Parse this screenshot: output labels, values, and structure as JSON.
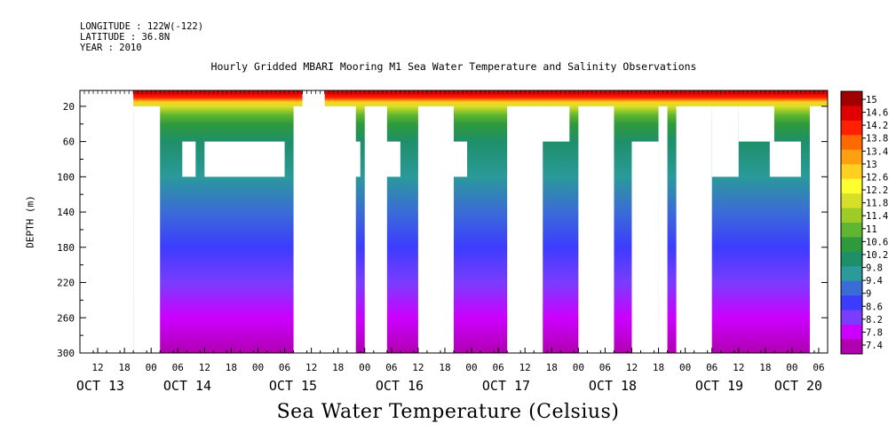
{
  "header": {
    "longitude": "LONGITUDE : 122W(-122)",
    "latitude": "LATITUDE : 36.8N",
    "year": "YEAR : 2010"
  },
  "chart_data": {
    "type": "heatmap",
    "title": "Hourly Gridded MBARI Mooring M1 Sea Water Temperature and Salinity Observations",
    "xlabel": "",
    "ylabel": "DEPTH (m)",
    "colorbar_label": "Sea Water Temperature (Celsius)",
    "x_range_hours_from_oct13_00": [
      8,
      176
    ],
    "x_hour_ticks": [
      "12",
      "18",
      "00",
      "06",
      "12",
      "18",
      "00",
      "06",
      "12",
      "18",
      "00",
      "06",
      "12",
      "18",
      "00",
      "06",
      "12",
      "18",
      "00",
      "06",
      "12",
      "18",
      "00",
      "06",
      "12",
      "18",
      "00",
      "06"
    ],
    "x_day_labels": [
      "OCT 13",
      "OCT 14",
      "OCT 15",
      "OCT 16",
      "OCT 17",
      "OCT 18",
      "OCT 19",
      "OCT 20"
    ],
    "y_range": [
      300,
      2
    ],
    "y_ticks": [
      20,
      60,
      100,
      140,
      180,
      220,
      260,
      300
    ],
    "colorbar_ticks": [
      "15",
      "14.6",
      "14.2",
      "13.8",
      "13.4",
      "13",
      "12.6",
      "12.2",
      "11.8",
      "11.4",
      "11",
      "10.6",
      "10.2",
      "9.8",
      "9.4",
      "9",
      "8.6",
      "8.2",
      "7.8",
      "7.4"
    ],
    "colorbar_range": [
      7.4,
      15.2
    ],
    "colors": [
      "#b000b0",
      "#cc00ff",
      "#7a3cff",
      "#3c3cff",
      "#3a6cd6",
      "#2a9a9a",
      "#1f8f6a",
      "#2e9a3c",
      "#5fb630",
      "#9dcc26",
      "#d6e028",
      "#ffff30",
      "#ffd020",
      "#ffa010",
      "#ff6a00",
      "#ff2000",
      "#e00000",
      "#a00000"
    ],
    "depth_profile_celsius": [
      {
        "depth": 5,
        "value": 14.5
      },
      {
        "depth": 10,
        "value": 14.0
      },
      {
        "depth": 15,
        "value": 12.8
      },
      {
        "depth": 20,
        "value": 12.0
      },
      {
        "depth": 30,
        "value": 11.0
      },
      {
        "depth": 40,
        "value": 10.5
      },
      {
        "depth": 60,
        "value": 10.0
      },
      {
        "depth": 100,
        "value": 9.6
      },
      {
        "depth": 140,
        "value": 9.2
      },
      {
        "depth": 180,
        "value": 8.8
      },
      {
        "depth": 220,
        "value": 8.4
      },
      {
        "depth": 260,
        "value": 8.0
      },
      {
        "depth": 300,
        "value": 7.6
      }
    ],
    "missing_regions_hours_depth": [
      [
        8,
        20,
        2,
        300
      ],
      [
        20,
        20,
        2,
        20
      ],
      [
        20,
        26,
        20,
        300
      ],
      [
        31,
        34,
        60,
        100
      ],
      [
        36,
        54,
        60,
        100
      ],
      [
        56,
        70,
        20,
        300
      ],
      [
        58,
        63,
        2,
        20
      ],
      [
        72,
        77,
        20,
        300
      ],
      [
        64,
        71,
        60,
        100
      ],
      [
        75,
        80,
        60,
        100
      ],
      [
        90,
        95,
        60,
        100
      ],
      [
        84,
        89,
        20,
        300
      ],
      [
        88,
        92,
        20,
        300
      ],
      [
        104,
        112,
        20,
        300
      ],
      [
        110,
        118,
        20,
        60
      ],
      [
        120,
        128,
        20,
        300
      ],
      [
        138,
        140,
        20,
        300
      ],
      [
        132,
        138,
        60,
        300
      ],
      [
        142,
        150,
        20,
        300
      ],
      [
        150,
        156,
        20,
        100
      ],
      [
        156,
        164,
        20,
        60
      ],
      [
        163,
        170,
        60,
        100
      ],
      [
        172,
        176,
        20,
        300
      ],
      [
        144,
        147,
        100,
        300
      ]
    ]
  }
}
